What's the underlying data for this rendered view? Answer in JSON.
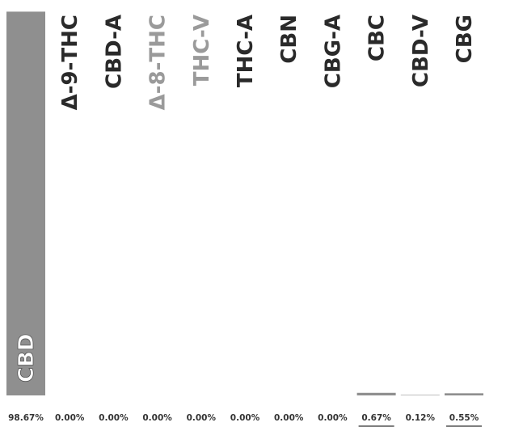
{
  "chart_data": {
    "type": "bar",
    "categories": [
      "CBD",
      "Δ-9-THC",
      "CBD-A",
      "Δ-8-THC",
      "THC-V",
      "THC-A",
      "CBN",
      "CBG-A",
      "CBC",
      "CBD-V",
      "CBG"
    ],
    "values": [
      98.67,
      0.0,
      0.0,
      0.0,
      0.0,
      0.0,
      0.0,
      0.0,
      0.67,
      0.12,
      0.55
    ],
    "value_labels": [
      "98.67%",
      "0.00%",
      "0.00%",
      "0.00%",
      "0.00%",
      "0.00%",
      "0.00%",
      "0.00%",
      "0.67%",
      "0.12%",
      "0.55%"
    ],
    "title": "",
    "xlabel": "",
    "ylabel": "",
    "ylim": [
      0,
      100
    ],
    "grid": false,
    "legend": "none",
    "colors": {
      "bar": "#8f8f8f",
      "label": "#2a2a2a",
      "label_faded": "#9a9a9a",
      "value": "#333333",
      "underline": "#333333"
    },
    "faded_categories": [
      "Δ-8-THC",
      "THC-V"
    ],
    "underlined_values": [
      "0.67%",
      "0.55%"
    ]
  }
}
